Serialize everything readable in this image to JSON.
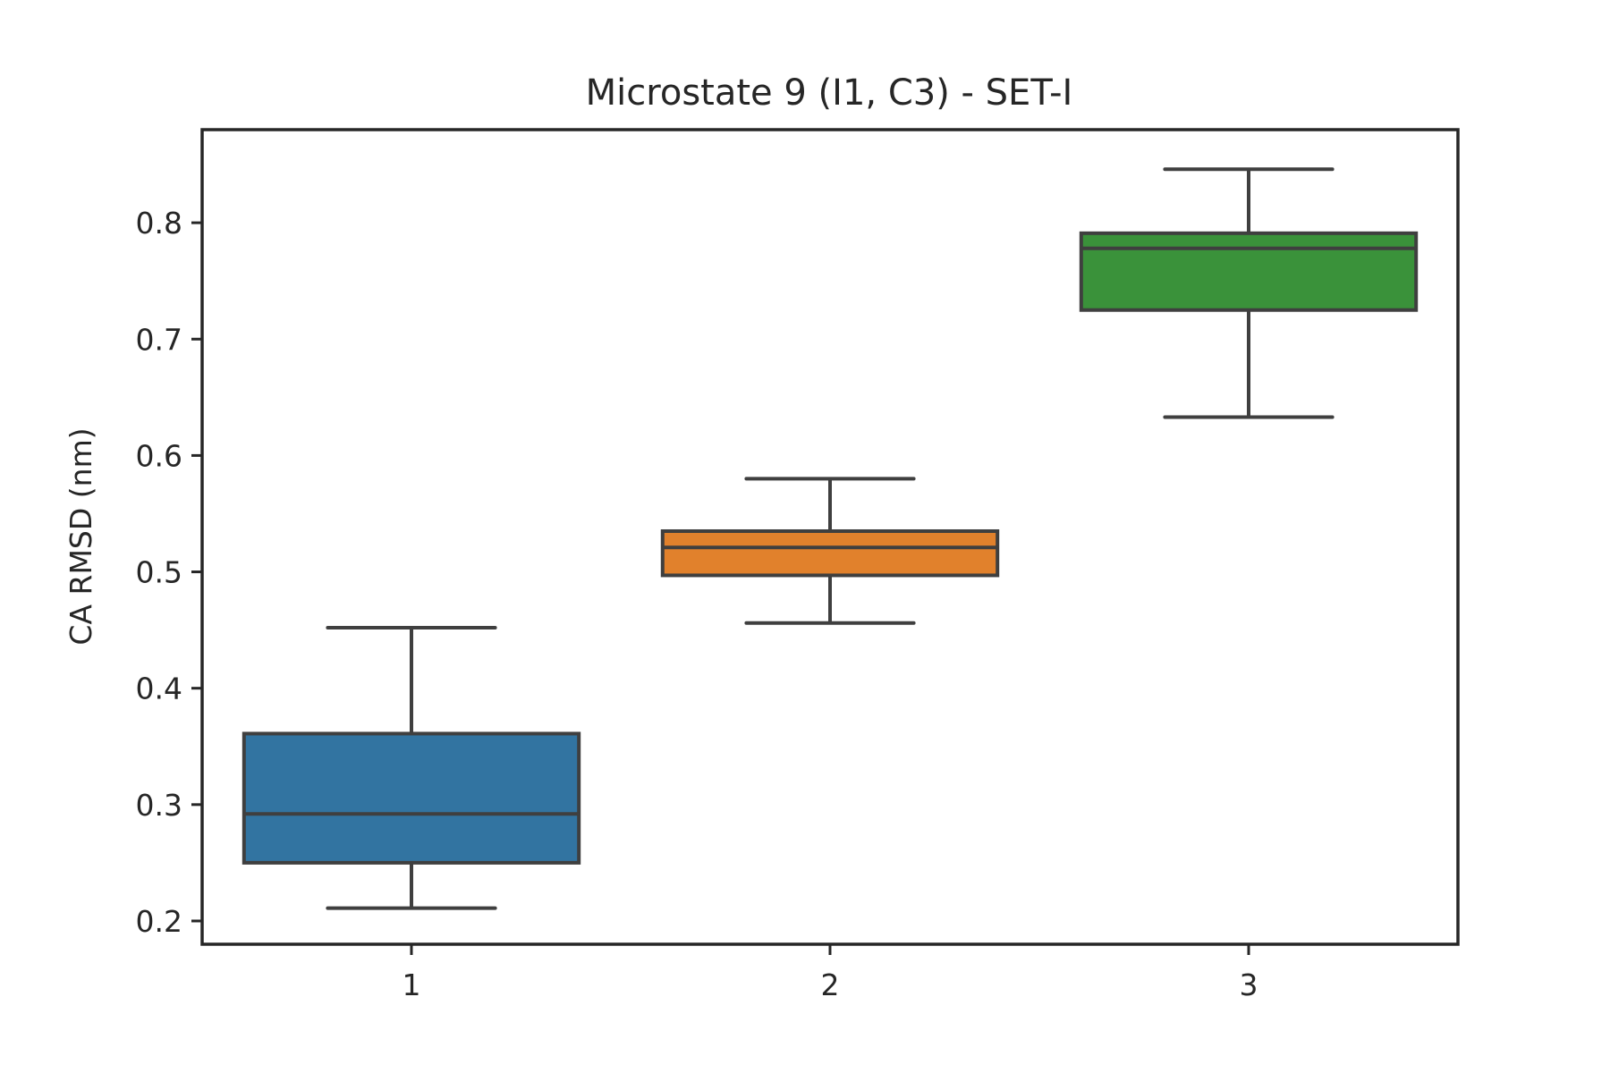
{
  "chart_data": {
    "type": "box",
    "title": "Microstate 9 (I1, C3) - SET-I",
    "xlabel": "",
    "ylabel": "CA RMSD (nm)",
    "ylim": [
      0.18,
      0.88
    ],
    "yticks": [
      "0.2",
      "0.3",
      "0.4",
      "0.5",
      "0.6",
      "0.7",
      "0.8"
    ],
    "categories": [
      "1",
      "2",
      "3"
    ],
    "boxes": [
      {
        "category": "1",
        "whisker_low": 0.211,
        "q1": 0.25,
        "median": 0.292,
        "q3": 0.361,
        "whisker_high": 0.452,
        "color": "#3274a1"
      },
      {
        "category": "2",
        "whisker_low": 0.456,
        "q1": 0.497,
        "median": 0.521,
        "q3": 0.535,
        "whisker_high": 0.58,
        "color": "#e1812c"
      },
      {
        "category": "3",
        "whisker_low": 0.633,
        "q1": 0.725,
        "median": 0.778,
        "q3": 0.791,
        "whisker_high": 0.846,
        "color": "#3a923a"
      }
    ],
    "grid": false,
    "legend": "none",
    "colors": {
      "edge": "#3f3f3f",
      "axes": "#262626"
    }
  }
}
